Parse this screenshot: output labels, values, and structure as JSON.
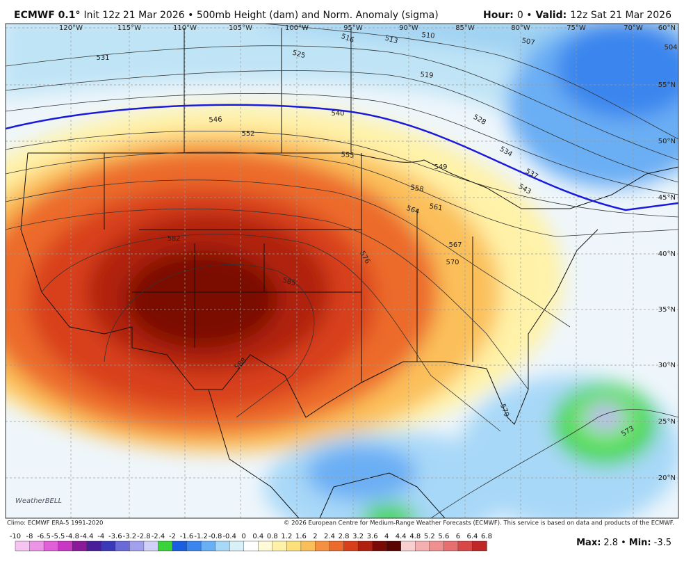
{
  "header": {
    "left": [
      {
        "text": "ECMWF 0.1°",
        "bold": true
      },
      {
        "text": "Init 12z 21 Mar 2026 • 500mb Height (dam) and Norm. Anomaly (sigma)",
        "bold": false
      }
    ],
    "right": [
      {
        "text": "Hour:",
        "bold": true
      },
      {
        "text": "0 •",
        "bold": false
      },
      {
        "text": "Valid:",
        "bold": true
      },
      {
        "text": "12z Sat 21 Mar 2026",
        "bold": false
      }
    ]
  },
  "map": {
    "longitudes": [
      "120°W",
      "115°W",
      "110°W",
      "105°W",
      "100°W",
      "95°W",
      "90°W",
      "85°W",
      "80°W",
      "75°W",
      "70°W"
    ],
    "latitudes": [
      "60°N",
      "55°N",
      "50°N",
      "45°N",
      "40°N",
      "35°N",
      "30°N",
      "25°N",
      "20°N"
    ],
    "contour_labels": [
      531,
      525,
      516,
      513,
      510,
      507,
      504,
      519,
      546,
      552,
      540,
      528,
      534,
      537,
      543,
      555,
      549,
      558,
      561,
      564,
      567,
      570,
      576,
      582,
      585,
      588,
      579,
      573
    ],
    "logo": "WeatherBELL"
  },
  "footer": {
    "climo": "Climo: ECMWF ERA-5 1991-2020",
    "copyright": "© 2026 European Centre for Medium-Range Weather Forecasts (ECMWF). This service is based on data and products of the ECMWF."
  },
  "colorbar": {
    "labels": [
      -10,
      -8,
      -6.5,
      -5.5,
      -4.8,
      -4.4,
      -4,
      -3.6,
      -3.2,
      -2.8,
      -2.4,
      -2,
      -1.6,
      -1.2,
      -0.8,
      -0.4,
      0,
      0.4,
      0.8,
      1.2,
      1.6,
      2,
      2.4,
      2.8,
      3.2,
      3.6,
      4,
      4.4,
      4.8,
      5.2,
      5.6,
      6,
      6.4,
      6.8
    ],
    "colors": [
      "#f6c4f0",
      "#ee94e6",
      "#e060d8",
      "#c838c4",
      "#8a1a9a",
      "#4a1e9a",
      "#3a3ab8",
      "#6a6ad8",
      "#a0a0ee",
      "#d0d0f8",
      "#3ad43a",
      "#1a5fe0",
      "#3a86ee",
      "#6aaef4",
      "#a8d8f8",
      "#d8f0fa",
      "#ffffff",
      "#fffbd8",
      "#fff2a8",
      "#fde07a",
      "#fbbf5a",
      "#f59040",
      "#ec6a2a",
      "#d8401c",
      "#b02010",
      "#7a0a06",
      "#5a0404",
      "#f8d0d0",
      "#f4b0b0",
      "#ee9090",
      "#e67070",
      "#d84848",
      "#c02828"
    ]
  },
  "stats": {
    "max_label": "Max:",
    "max": 2.8,
    "separator": "•",
    "min_label": "Min:",
    "min": -3.5
  }
}
